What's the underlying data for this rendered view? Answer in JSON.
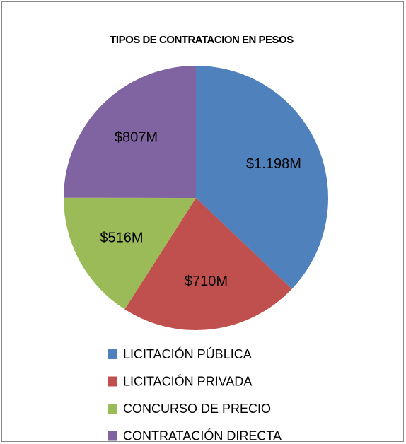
{
  "chart_data": {
    "type": "pie",
    "title": "TIPOS DE CONTRATACION EN PESOS",
    "categories": [
      "LICITACIÓN PÚBLICA",
      "LICITACIÓN PRIVADA",
      "CONCURSO DE PRECIO",
      "CONTRATACIÓN DIRECTA"
    ],
    "values": [
      1198,
      710,
      516,
      807
    ],
    "value_labels": [
      "$1.198M",
      "$710M",
      "$516M",
      "$807M"
    ],
    "colors": [
      "#4f81bd",
      "#c0504d",
      "#9bbb59",
      "#8064a2"
    ],
    "legend": "bottom"
  }
}
